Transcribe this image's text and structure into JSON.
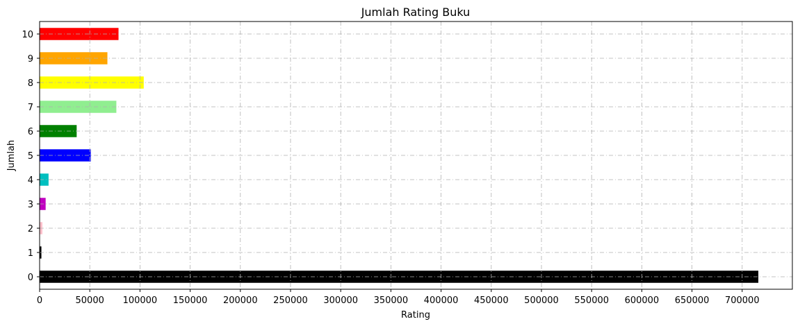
{
  "chart_data": {
    "type": "bar",
    "orientation": "horizontal",
    "title": "Jumlah Rating Buku",
    "xlabel": "Rating",
    "ylabel": "Jumlah",
    "categories": [
      "0",
      "1",
      "2",
      "3",
      "4",
      "5",
      "6",
      "7",
      "8",
      "9",
      "10"
    ],
    "values": [
      716109,
      1770,
      2759,
      5996,
      8904,
      50974,
      36924,
      76457,
      103736,
      67541,
      78610
    ],
    "colors": [
      "#000000",
      "#000000",
      "#ffc0cb",
      "#c000c0",
      "#00bfbf",
      "#0000ff",
      "#008000",
      "#90ee90",
      "#ffff00",
      "#ffa500",
      "#ff0000"
    ],
    "xlim": [
      0,
      750000
    ],
    "xticks": [
      "0",
      "50000",
      "100000",
      "150000",
      "200000",
      "250000",
      "300000",
      "350000",
      "400000",
      "450000",
      "500000",
      "550000",
      "600000",
      "650000",
      "700000"
    ],
    "grid": true
  }
}
